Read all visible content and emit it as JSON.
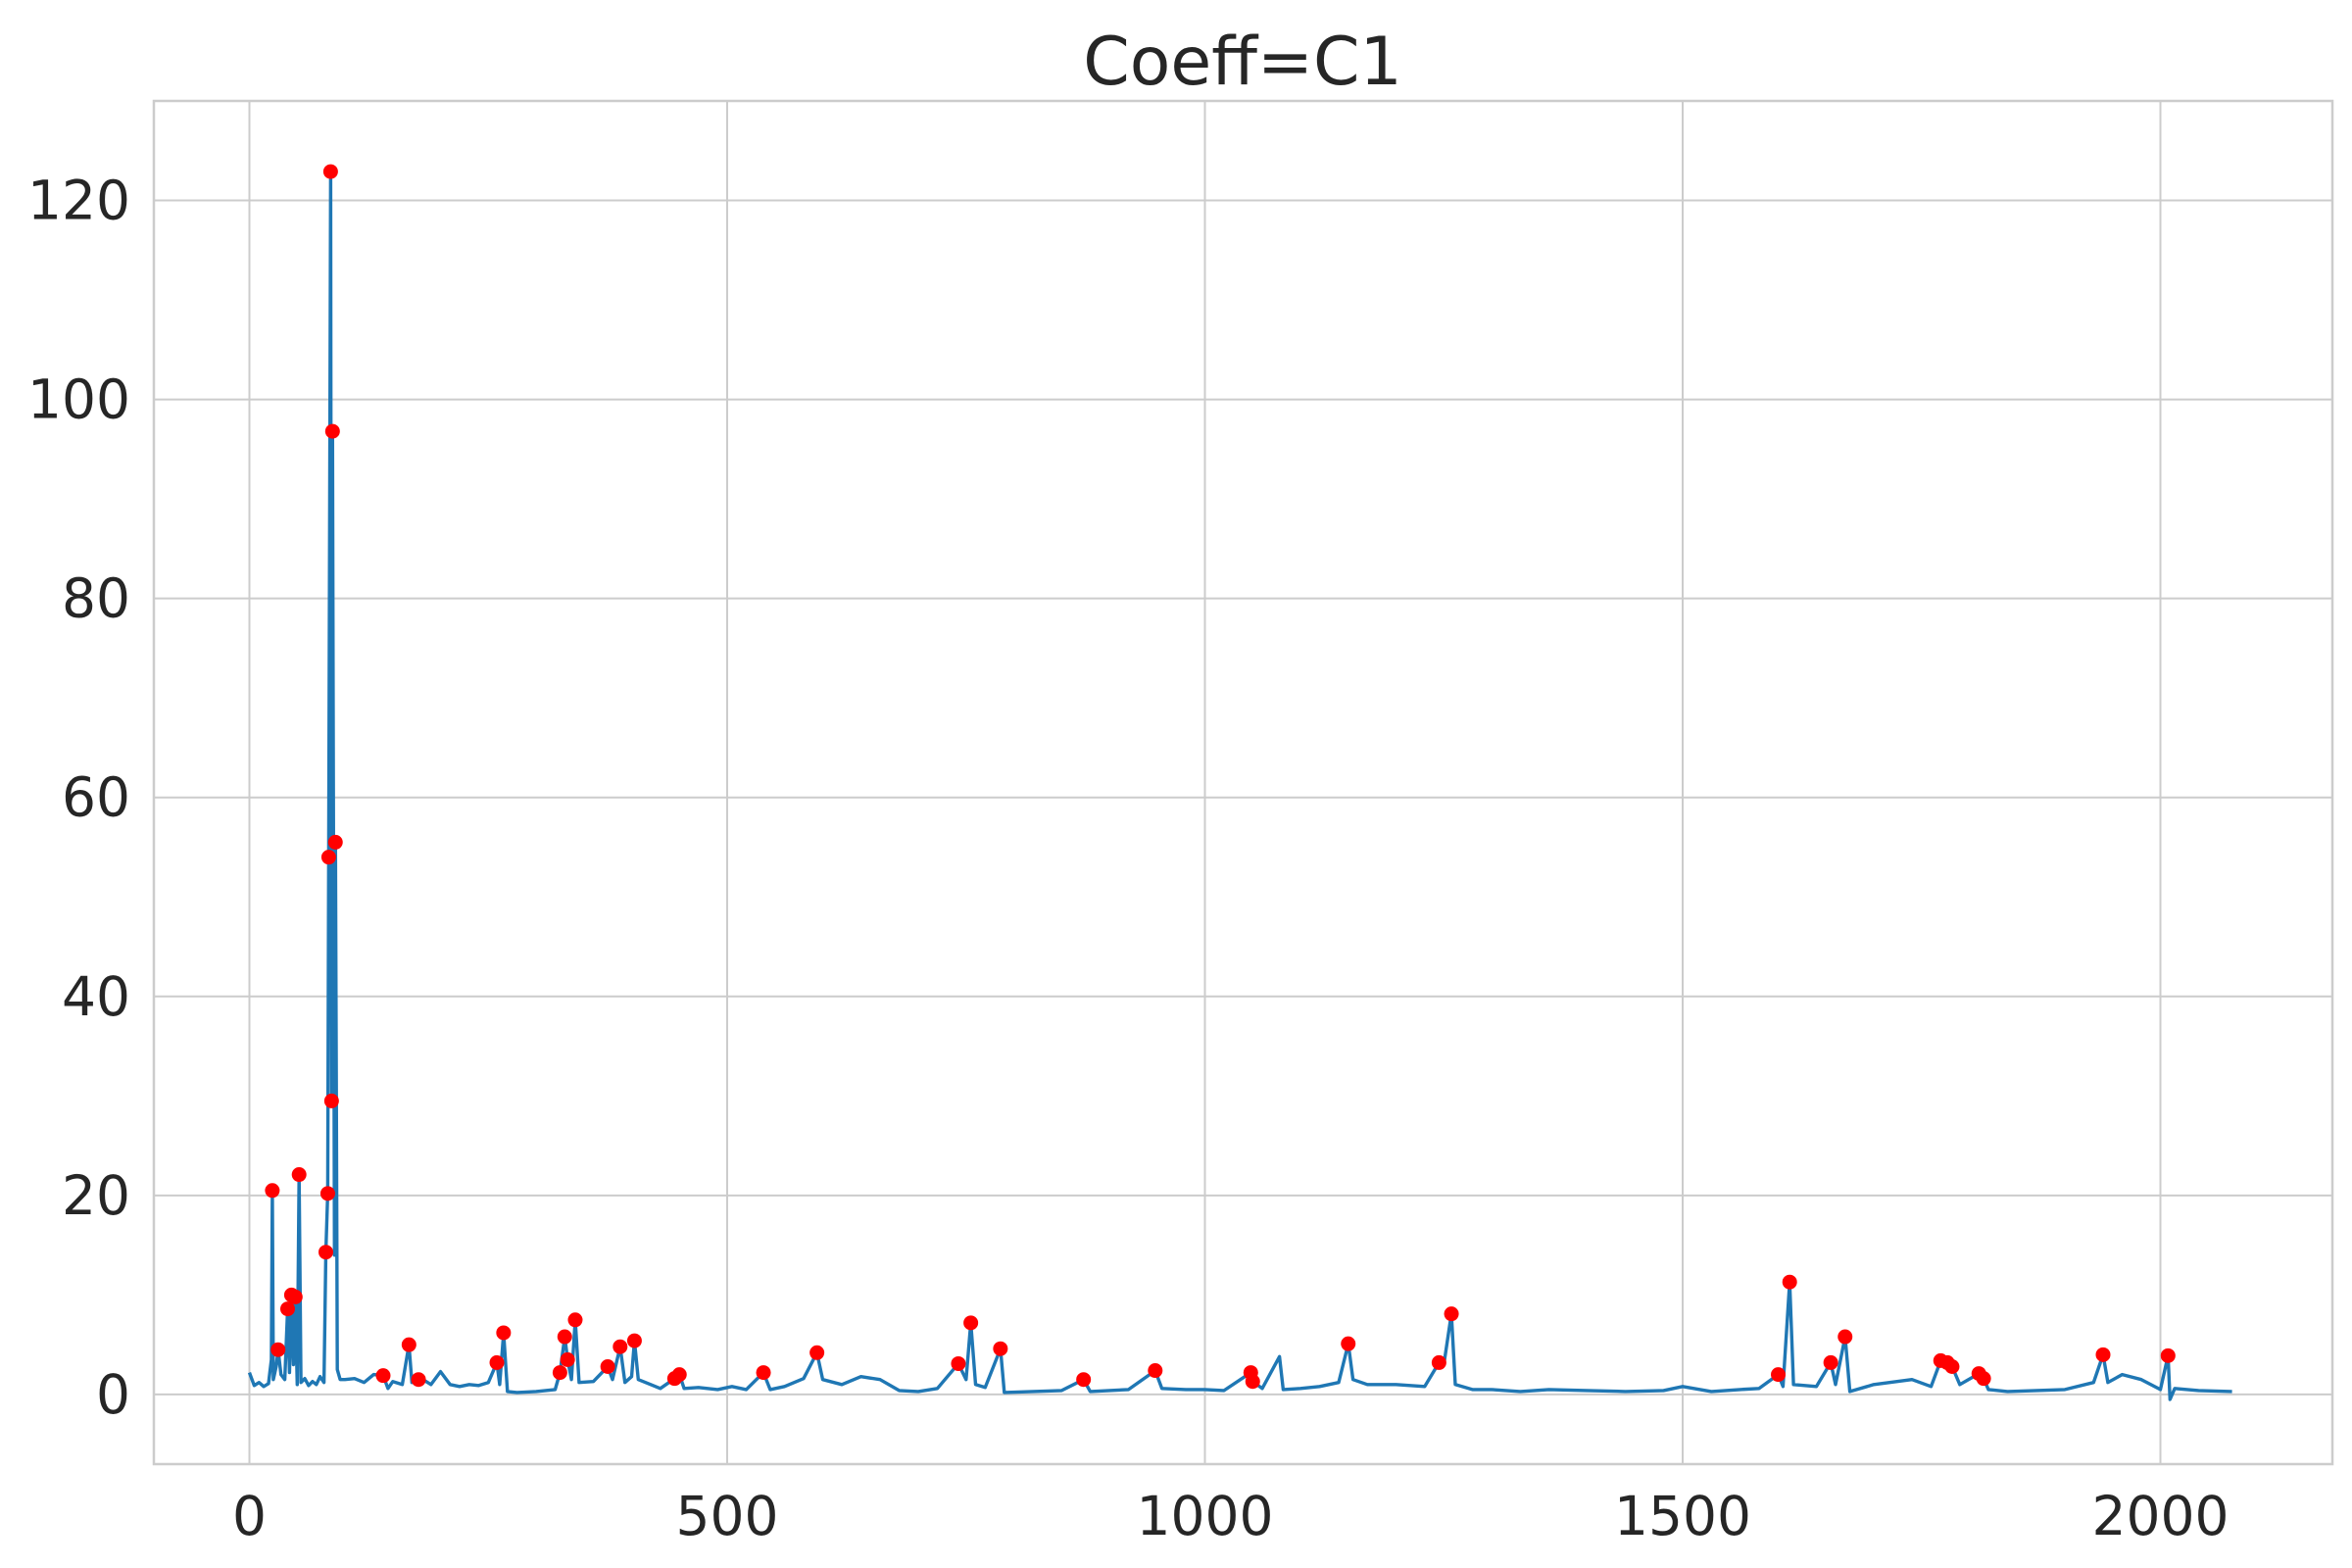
{
  "chart_data": {
    "type": "line",
    "title": "Coeff=C1",
    "xlabel": "",
    "ylabel": "",
    "xlim": [
      -100,
      2180
    ],
    "ylim": [
      -7,
      130
    ],
    "xticks": [
      0,
      500,
      1000,
      1500,
      2000
    ],
    "yticks": [
      0,
      20,
      40,
      60,
      80,
      100,
      120
    ],
    "grid": true,
    "line_color": "#1f77b4",
    "marker_color": "#ff0000",
    "series": [
      {
        "values": [
          [
            0,
            2.2
          ],
          [
            5,
            0.9
          ],
          [
            10,
            1.2
          ],
          [
            15,
            0.8
          ],
          [
            20,
            1.1
          ],
          [
            23,
            3.5
          ],
          [
            24,
            20.5
          ],
          [
            25,
            1.5
          ],
          [
            28,
            2.8
          ],
          [
            30,
            4.5
          ],
          [
            33,
            2.0
          ],
          [
            37,
            1.5
          ],
          [
            40,
            8.6
          ],
          [
            42,
            2.2
          ],
          [
            44,
            10.0
          ],
          [
            46,
            3.0
          ],
          [
            48,
            9.8
          ],
          [
            50,
            1.0
          ],
          [
            52,
            22.1
          ],
          [
            54,
            1.2
          ],
          [
            58,
            1.6
          ],
          [
            62,
            0.9
          ],
          [
            66,
            1.3
          ],
          [
            70,
            1.0
          ],
          [
            74,
            1.8
          ],
          [
            78,
            1.2
          ],
          [
            80,
            14.3
          ],
          [
            82,
            20.2
          ],
          [
            83,
            54.0
          ],
          [
            85,
            122.9
          ],
          [
            86,
            29.5
          ],
          [
            87,
            96.8
          ],
          [
            89,
            14.0
          ],
          [
            90,
            55.5
          ],
          [
            92,
            2.5
          ],
          [
            95,
            1.5
          ],
          [
            100,
            1.5
          ],
          [
            110,
            1.6
          ],
          [
            120,
            1.2
          ],
          [
            130,
            2.0
          ],
          [
            140,
            1.9
          ],
          [
            145,
            0.6
          ],
          [
            150,
            1.3
          ],
          [
            160,
            1.0
          ],
          [
            167,
            5.0
          ],
          [
            170,
            1.2
          ],
          [
            177,
            1.5
          ],
          [
            180,
            1.6
          ],
          [
            190,
            1.0
          ],
          [
            200,
            2.3
          ],
          [
            210,
            1.0
          ],
          [
            220,
            0.8
          ],
          [
            230,
            1.0
          ],
          [
            240,
            0.9
          ],
          [
            250,
            1.2
          ],
          [
            259,
            3.2
          ],
          [
            262,
            1.0
          ],
          [
            266,
            6.2
          ],
          [
            270,
            0.3
          ],
          [
            280,
            0.2
          ],
          [
            300,
            0.3
          ],
          [
            320,
            0.5
          ],
          [
            325,
            2.2
          ],
          [
            330,
            5.8
          ],
          [
            333,
            3.5
          ],
          [
            337,
            1.5
          ],
          [
            341,
            7.5
          ],
          [
            345,
            1.2
          ],
          [
            360,
            1.3
          ],
          [
            375,
            2.8
          ],
          [
            380,
            1.5
          ],
          [
            388,
            4.8
          ],
          [
            393,
            1.2
          ],
          [
            400,
            1.8
          ],
          [
            403,
            5.4
          ],
          [
            407,
            1.5
          ],
          [
            420,
            1.0
          ],
          [
            430,
            0.6
          ],
          [
            445,
            1.6
          ],
          [
            450,
            2.0
          ],
          [
            455,
            0.6
          ],
          [
            470,
            0.7
          ],
          [
            490,
            0.5
          ],
          [
            505,
            0.8
          ],
          [
            520,
            0.5
          ],
          [
            538,
            2.2
          ],
          [
            545,
            0.5
          ],
          [
            560,
            0.8
          ],
          [
            580,
            1.6
          ],
          [
            594,
            4.2
          ],
          [
            600,
            1.5
          ],
          [
            620,
            1.0
          ],
          [
            640,
            1.8
          ],
          [
            660,
            1.5
          ],
          [
            680,
            0.4
          ],
          [
            700,
            0.3
          ],
          [
            720,
            0.6
          ],
          [
            742,
            3.1
          ],
          [
            750,
            1.5
          ],
          [
            755,
            7.2
          ],
          [
            760,
            1.0
          ],
          [
            770,
            0.7
          ],
          [
            786,
            4.6
          ],
          [
            790,
            0.2
          ],
          [
            820,
            0.3
          ],
          [
            850,
            0.4
          ],
          [
            873,
            1.5
          ],
          [
            880,
            0.3
          ],
          [
            900,
            0.4
          ],
          [
            920,
            0.5
          ],
          [
            948,
            2.4
          ],
          [
            955,
            0.6
          ],
          [
            980,
            0.5
          ],
          [
            1000,
            0.5
          ],
          [
            1020,
            0.4
          ],
          [
            1048,
            2.2
          ],
          [
            1050,
            1.3
          ],
          [
            1060,
            0.6
          ],
          [
            1078,
            3.8
          ],
          [
            1082,
            0.5
          ],
          [
            1100,
            0.6
          ],
          [
            1120,
            0.8
          ],
          [
            1140,
            1.2
          ],
          [
            1150,
            5.1
          ],
          [
            1155,
            1.5
          ],
          [
            1170,
            1.0
          ],
          [
            1200,
            1.0
          ],
          [
            1230,
            0.8
          ],
          [
            1245,
            3.2
          ],
          [
            1250,
            3.0
          ],
          [
            1258,
            8.1
          ],
          [
            1262,
            1.0
          ],
          [
            1280,
            0.5
          ],
          [
            1300,
            0.5
          ],
          [
            1330,
            0.3
          ],
          [
            1360,
            0.5
          ],
          [
            1400,
            0.4
          ],
          [
            1440,
            0.3
          ],
          [
            1480,
            0.4
          ],
          [
            1500,
            0.8
          ],
          [
            1530,
            0.3
          ],
          [
            1560,
            0.5
          ],
          [
            1580,
            0.6
          ],
          [
            1600,
            2.0
          ],
          [
            1605,
            0.8
          ],
          [
            1612,
            11.3
          ],
          [
            1616,
            1.0
          ],
          [
            1640,
            0.8
          ],
          [
            1655,
            3.2
          ],
          [
            1660,
            1.0
          ],
          [
            1670,
            5.8
          ],
          [
            1675,
            0.3
          ],
          [
            1700,
            1.0
          ],
          [
            1740,
            1.5
          ],
          [
            1760,
            0.8
          ],
          [
            1770,
            3.4
          ],
          [
            1777,
            3.2
          ],
          [
            1782,
            2.8
          ],
          [
            1790,
            1.0
          ],
          [
            1810,
            2.1
          ],
          [
            1815,
            1.6
          ],
          [
            1820,
            0.5
          ],
          [
            1840,
            0.3
          ],
          [
            1870,
            0.4
          ],
          [
            1900,
            0.5
          ],
          [
            1930,
            1.2
          ],
          [
            1940,
            4.0
          ],
          [
            1945,
            1.2
          ],
          [
            1960,
            2.0
          ],
          [
            1980,
            1.5
          ],
          [
            2000,
            0.5
          ],
          [
            2008,
            3.9
          ],
          [
            2010,
            -0.5
          ],
          [
            2015,
            0.6
          ],
          [
            2040,
            0.4
          ],
          [
            2075,
            0.3
          ]
        ]
      }
    ],
    "peaks": [
      [
        24,
        20.5
      ],
      [
        30,
        4.5
      ],
      [
        40,
        8.6
      ],
      [
        44,
        10.0
      ],
      [
        48,
        9.8
      ],
      [
        52,
        22.1
      ],
      [
        80,
        14.3
      ],
      [
        82,
        20.2
      ],
      [
        83,
        54.0
      ],
      [
        85,
        122.9
      ],
      [
        86,
        29.5
      ],
      [
        87,
        96.8
      ],
      [
        90,
        55.5
      ],
      [
        140,
        1.9
      ],
      [
        167,
        5.0
      ],
      [
        177,
        1.5
      ],
      [
        259,
        3.2
      ],
      [
        266,
        6.2
      ],
      [
        325,
        2.2
      ],
      [
        330,
        5.8
      ],
      [
        333,
        3.5
      ],
      [
        341,
        7.5
      ],
      [
        375,
        2.8
      ],
      [
        388,
        4.8
      ],
      [
        403,
        5.4
      ],
      [
        445,
        1.6
      ],
      [
        450,
        2.0
      ],
      [
        538,
        2.2
      ],
      [
        594,
        4.2
      ],
      [
        742,
        3.1
      ],
      [
        755,
        7.2
      ],
      [
        786,
        4.6
      ],
      [
        873,
        1.5
      ],
      [
        948,
        2.4
      ],
      [
        1048,
        2.2
      ],
      [
        1050,
        1.3
      ],
      [
        1150,
        5.1
      ],
      [
        1245,
        3.2
      ],
      [
        1258,
        8.1
      ],
      [
        1600,
        2.0
      ],
      [
        1612,
        11.3
      ],
      [
        1655,
        3.2
      ],
      [
        1670,
        5.8
      ],
      [
        1770,
        3.4
      ],
      [
        1777,
        3.2
      ],
      [
        1782,
        2.8
      ],
      [
        1810,
        2.1
      ],
      [
        1815,
        1.6
      ],
      [
        1940,
        4.0
      ],
      [
        2008,
        3.9
      ]
    ]
  }
}
